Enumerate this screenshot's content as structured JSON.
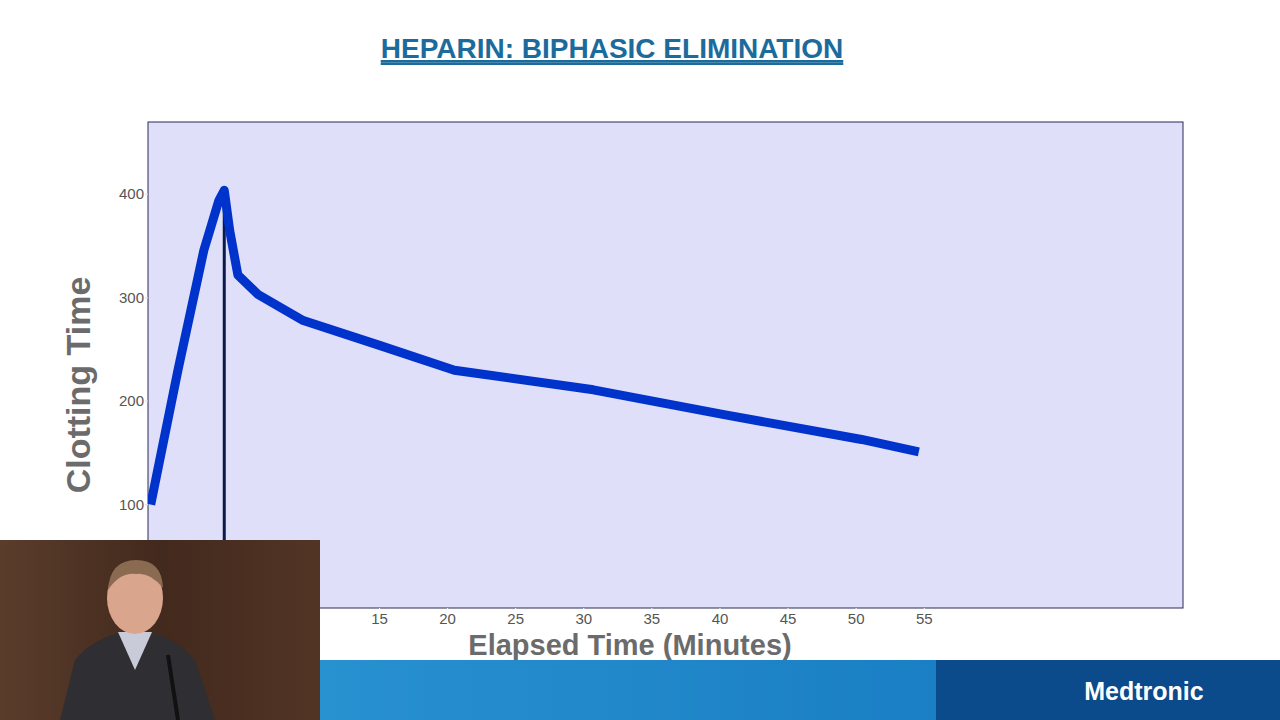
{
  "chart_data": {
    "type": "line",
    "title": "HEPARIN:  BIPHASIC ELIMINATION",
    "x_label": "Elapsed Time (Minutes)",
    "y_label": "Clotting Time",
    "x": [
      -1.8,
      0.2,
      2.1,
      3.2,
      3.6,
      4.0,
      4.6,
      6.1,
      9.4,
      15,
      20.5,
      30.7,
      40.3,
      50.4,
      54.6
    ],
    "values": [
      100,
      230,
      346,
      394,
      404,
      365,
      322,
      303,
      278,
      254,
      230,
      211,
      187,
      163,
      151
    ],
    "color": "#0033cc",
    "xlim": [
      -2,
      74
    ],
    "xticks": [
      15,
      20,
      25,
      30,
      35,
      40,
      45,
      50,
      55
    ],
    "ylim": [
      0,
      470
    ],
    "yticks": [
      100,
      200,
      300,
      400
    ],
    "grid": false
  },
  "footer": {
    "brand": "Medtronic"
  }
}
